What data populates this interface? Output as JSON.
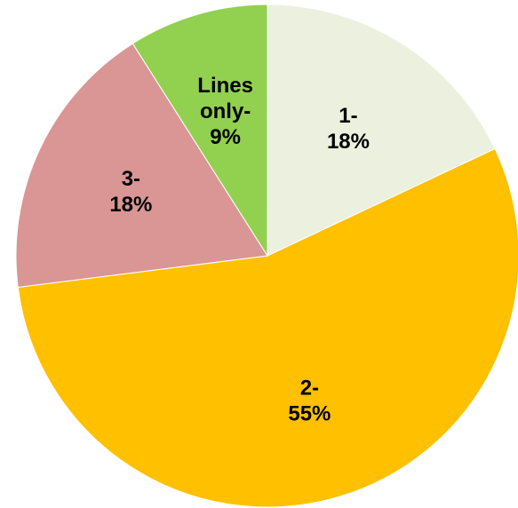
{
  "chart_data": {
    "type": "pie",
    "title": "",
    "slices": [
      {
        "label_lines": [
          "1-",
          "18%"
        ],
        "value": 18,
        "color": "#EBF1DE"
      },
      {
        "label_lines": [
          "2-",
          "55%"
        ],
        "value": 55,
        "color": "#FFC000"
      },
      {
        "label_lines": [
          "3-",
          "18%"
        ],
        "value": 18,
        "color": "#D99694"
      },
      {
        "label_lines": [
          "Lines",
          "only-",
          "9%"
        ],
        "value": 9,
        "color": "#92D050"
      }
    ],
    "legend": "none"
  }
}
